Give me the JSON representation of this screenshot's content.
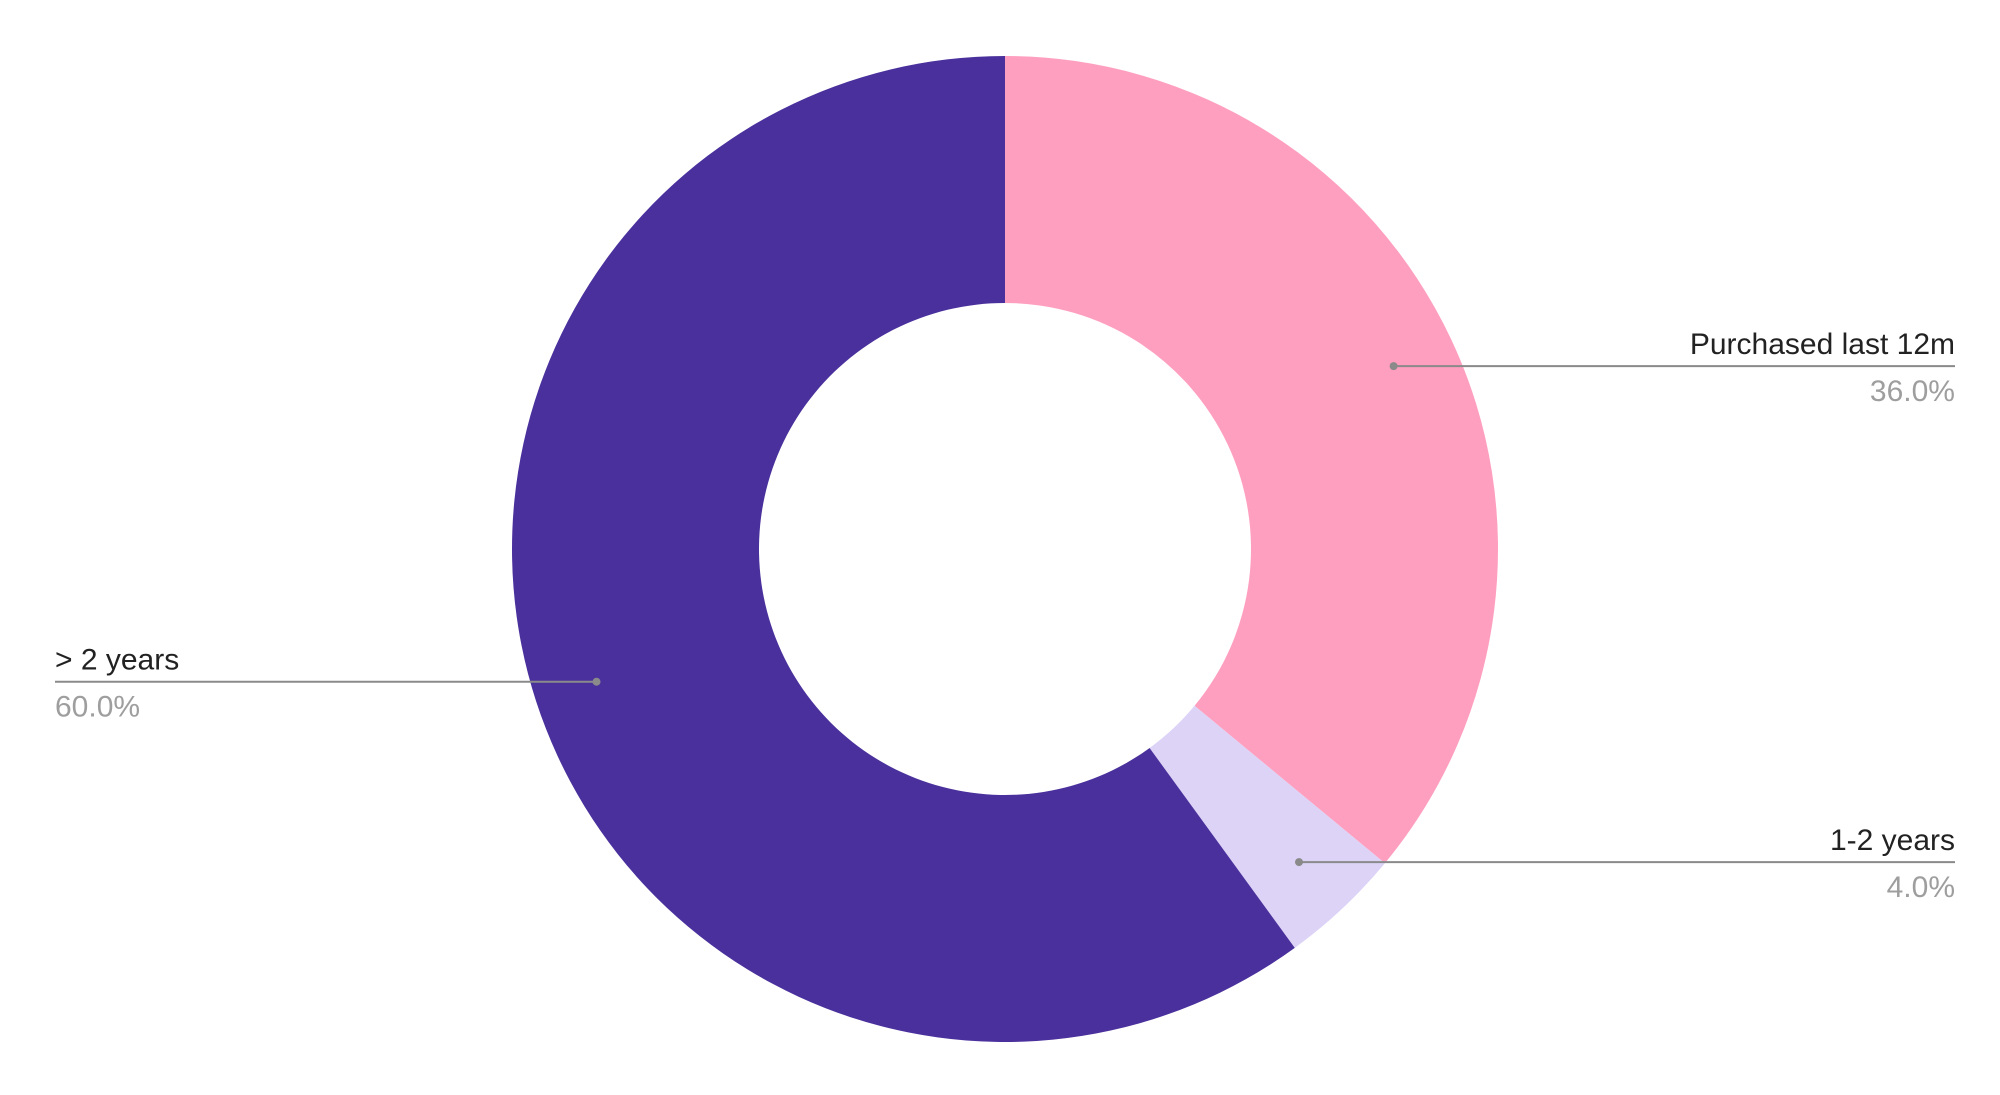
{
  "chart_data": {
    "type": "pie",
    "variant": "donut",
    "title": "",
    "legend": "none",
    "slices": [
      {
        "label": "Purchased last 12m",
        "value": 36.0,
        "display": "36.0%",
        "color": "#FF9FBF"
      },
      {
        "label": "1-2 years",
        "value": 4.0,
        "display": "4.0%",
        "color": "#DCD3F7"
      },
      {
        "label": "> 2 years",
        "value": 60.0,
        "display": "60.0%",
        "color": "#4A309C"
      }
    ]
  }
}
